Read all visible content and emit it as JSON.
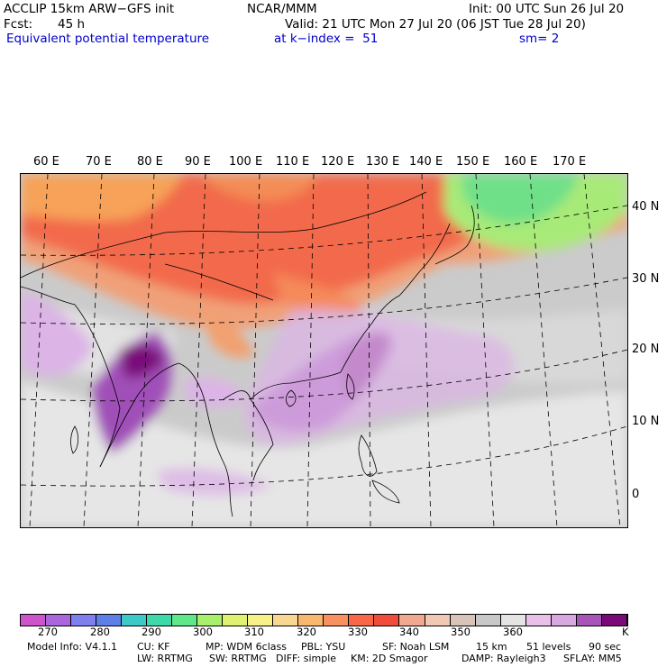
{
  "header": {
    "model": "ACCLIP 15km ARW−GFS init",
    "org": "NCAR/MMM",
    "init": "Init: 00 UTC Sun 26 Jul 20",
    "fcst_label": "Fcst:",
    "fcst_value": "45 h",
    "valid": "Valid: 21 UTC Mon 27 Jul 20 (06 JST Tue 28 Jul 20)",
    "field": "Equivalent potential temperature",
    "level": "at k−index =  51",
    "smoothing": "sm= 2"
  },
  "map": {
    "longitude_labels": [
      "60 E",
      "70 E",
      "80 E",
      "90 E",
      "100 E",
      "110 E",
      "120 E",
      "130 E",
      "140 E",
      "150 E",
      "160 E",
      "170 E"
    ],
    "latitude_labels": [
      "40 N",
      "30 N",
      "20 N",
      "10 N",
      "0"
    ]
  },
  "colorbar": {
    "colors": [
      "#cc55cc",
      "#aa66dd",
      "#7f7fee",
      "#5f7fe8",
      "#3fc8c8",
      "#3fd8a8",
      "#5fe88a",
      "#a8f06c",
      "#e0f070",
      "#f8f088",
      "#f8d890",
      "#f8b870",
      "#f89060",
      "#f86848",
      "#f04c3c",
      "#f0a890",
      "#f0c8b4",
      "#d8c4b8",
      "#c8c8c8",
      "#e4e4e4",
      "#e8c0e8",
      "#d8a8e0",
      "#a855b8",
      "#7a0a7a"
    ],
    "tick_labels": [
      "270",
      "280",
      "290",
      "300",
      "310",
      "320",
      "330",
      "340",
      "350",
      "360"
    ],
    "unit": "K"
  },
  "footer": {
    "line1": [
      "Model Info: V4.1.1",
      "CU: KF",
      "MP: WDM 6class",
      "PBL: YSU",
      "SF: Noah LSM",
      "15 km",
      "51 levels",
      "90 sec"
    ],
    "line2": [
      "LW: RRTMG",
      "SW: RRTMG",
      "DIFF: simple",
      "KM: 2D Smagor",
      "DAMP: Rayleigh3",
      "SFLAY: MM5"
    ]
  }
}
